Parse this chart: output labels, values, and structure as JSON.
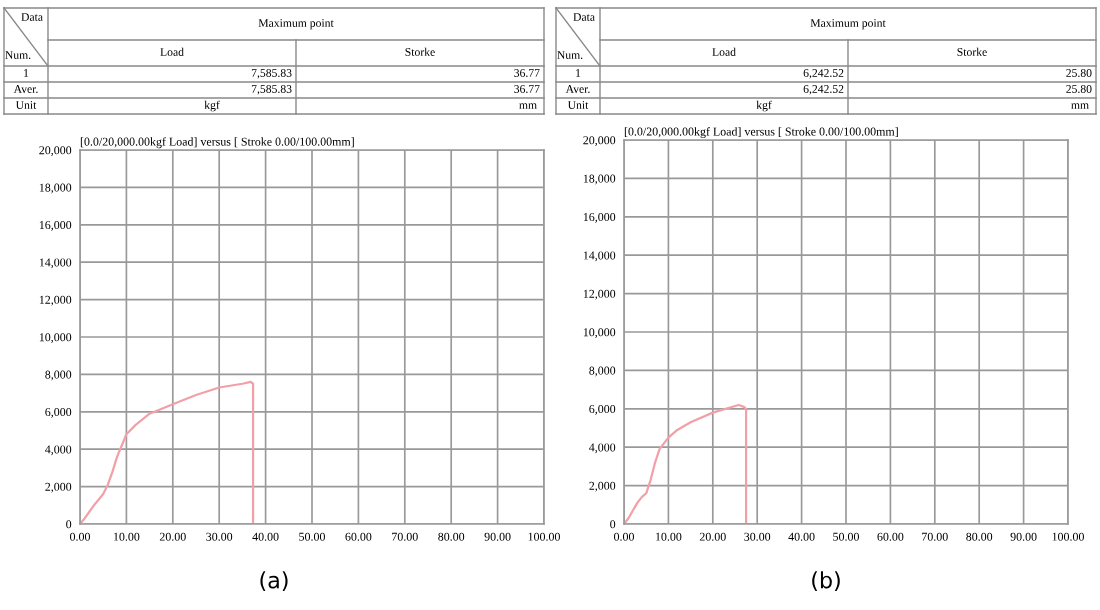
{
  "chart_data": [
    {
      "type": "line",
      "title": "[0.0/20,000.00kgf Load] versus [ Stroke 0.00/100.00mm]",
      "x": [
        0,
        1,
        3,
        4,
        5,
        6,
        7,
        8,
        9,
        10,
        12,
        15,
        20,
        25,
        30,
        35,
        36.77,
        37.3,
        37.3
      ],
      "series": [
        {
          "color": "#f2a0a8",
          "values": [
            0,
            300,
            1000,
            1300,
            1600,
            2100,
            2800,
            3600,
            4200,
            4800,
            5300,
            5900,
            6400,
            6900,
            7300,
            7500,
            7600,
            7500,
            0
          ]
        }
      ],
      "xlim": [
        0,
        100
      ],
      "ylim": [
        0,
        20000
      ],
      "xticks": [
        {
          "value": 0,
          "label": "0.00"
        },
        {
          "value": 10,
          "label": "10.00"
        },
        {
          "value": 20,
          "label": "20.00"
        },
        {
          "value": 30,
          "label": "30.00"
        },
        {
          "value": 40,
          "label": "40.00"
        },
        {
          "value": 50,
          "label": "50.00"
        },
        {
          "value": 60,
          "label": "60.00"
        },
        {
          "value": 70,
          "label": "70.00"
        },
        {
          "value": 80,
          "label": "80.00"
        },
        {
          "value": 90,
          "label": "90.00"
        },
        {
          "value": 100,
          "label": "100.00"
        }
      ],
      "yticks": [
        0,
        {
          "value": 2000,
          "label": "2,000"
        },
        {
          "value": 4000,
          "label": "4,000"
        },
        {
          "value": 6000,
          "label": "6,000"
        },
        {
          "value": 8000,
          "label": "8,000"
        },
        {
          "value": 10000,
          "label": "10,000"
        },
        {
          "value": 12000,
          "label": "12,000"
        },
        {
          "value": 14000,
          "label": "14,000"
        },
        {
          "value": 16000,
          "label": "16,000"
        },
        {
          "value": 18000,
          "label": "18,000"
        },
        {
          "value": 20000,
          "label": "20,000"
        }
      ],
      "grid": true,
      "legend": false,
      "marker": "none",
      "line_style": "solid",
      "annotations": [
        "Data",
        "Num.",
        "Maximum point",
        "Load",
        "Storke",
        "1",
        "7,585.83",
        "36.77",
        "Aver.",
        "7,585.83",
        "36.77",
        "Unit",
        "kgf",
        "mm",
        "(a)"
      ]
    },
    {
      "type": "line",
      "title": "[0.0/20,000.00kgf Load] versus [ Stroke 0.00/100.00mm]",
      "x": [
        0,
        1,
        2,
        3,
        4,
        5,
        6,
        7,
        8,
        10,
        12,
        15,
        20,
        25.8,
        27,
        27.5,
        27.5
      ],
      "series": [
        {
          "color": "#f2a0a8",
          "values": [
            0,
            300,
            700,
            1100,
            1400,
            1600,
            2300,
            3200,
            3900,
            4500,
            4900,
            5300,
            5800,
            6200,
            6100,
            6000,
            0
          ]
        }
      ],
      "xlim": [
        0,
        100
      ],
      "ylim": [
        0,
        20000
      ],
      "xticks": [
        {
          "value": 0,
          "label": "0.00"
        },
        {
          "value": 10,
          "label": "10.00"
        },
        {
          "value": 20,
          "label": "20.00"
        },
        {
          "value": 30,
          "label": "30.00"
        },
        {
          "value": 40,
          "label": "40.00"
        },
        {
          "value": 50,
          "label": "50.00"
        },
        {
          "value": 60,
          "label": "60.00"
        },
        {
          "value": 70,
          "label": "70.00"
        },
        {
          "value": 80,
          "label": "80.00"
        },
        {
          "value": 90,
          "label": "90.00"
        },
        {
          "value": 100,
          "label": "100.00"
        }
      ],
      "yticks": [
        0,
        {
          "value": 2000,
          "label": "2,000"
        },
        {
          "value": 4000,
          "label": "4,000"
        },
        {
          "value": 6000,
          "label": "6,000"
        },
        {
          "value": 8000,
          "label": "8,000"
        },
        {
          "value": 10000,
          "label": "10,000"
        },
        {
          "value": 12000,
          "label": "12,000"
        },
        {
          "value": 14000,
          "label": "14,000"
        },
        {
          "value": 16000,
          "label": "16,000"
        },
        {
          "value": 18000,
          "label": "18,000"
        },
        {
          "value": 20000,
          "label": "20,000"
        }
      ],
      "grid": true,
      "legend": false,
      "marker": "none",
      "line_style": "solid",
      "annotations": [
        "Data",
        "Num.",
        "Maximum point",
        "Load",
        "Storke",
        "1",
        "6,242.52",
        "25.80",
        "Aver.",
        "6,242.52",
        "25.80",
        "Unit",
        "kgf",
        "mm",
        "(b)"
      ]
    }
  ]
}
